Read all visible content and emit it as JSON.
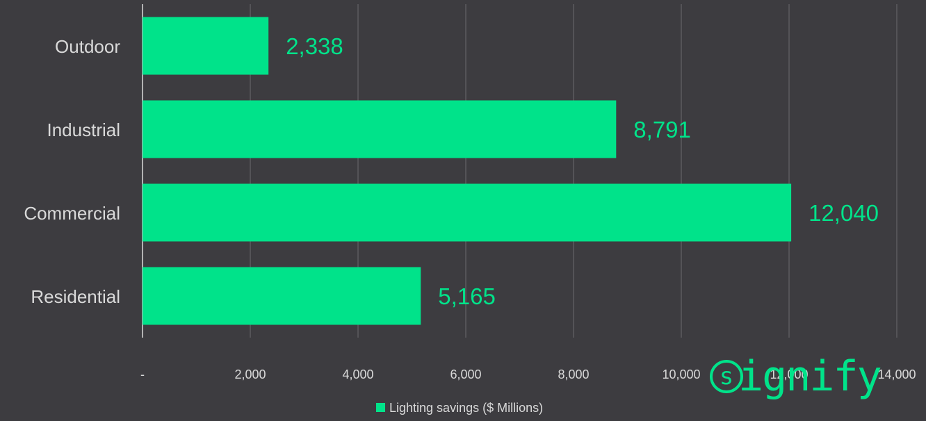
{
  "colors": {
    "background": "#3d3c40",
    "bar": "#00e38a",
    "axis_text": "#d9d9d9",
    "grid": "#6b6a6e",
    "label_text": "#00e38a"
  },
  "chart_data": {
    "type": "bar",
    "orientation": "horizontal",
    "categories": [
      "Outdoor",
      "Industrial",
      "Commercial",
      "Residential"
    ],
    "value_labels": [
      "2,338",
      "8,791",
      "12,040",
      "5,165"
    ],
    "series": [
      {
        "name": "Lighting savings ($ Millions)",
        "values": [
          2338,
          8791,
          12040,
          5165
        ]
      }
    ],
    "x_ticks": [
      0,
      2000,
      4000,
      6000,
      8000,
      10000,
      12000,
      14000
    ],
    "x_tick_labels": [
      "-",
      "2,000",
      "4,000",
      "6,000",
      "8,000",
      "10,000",
      "12,000",
      "14,000"
    ],
    "xlim": [
      0,
      14000
    ],
    "grid": true,
    "legend_position": "bottom"
  },
  "logo": {
    "mark": "s",
    "text": "ignify",
    "icon": "signify-logo-icon"
  }
}
